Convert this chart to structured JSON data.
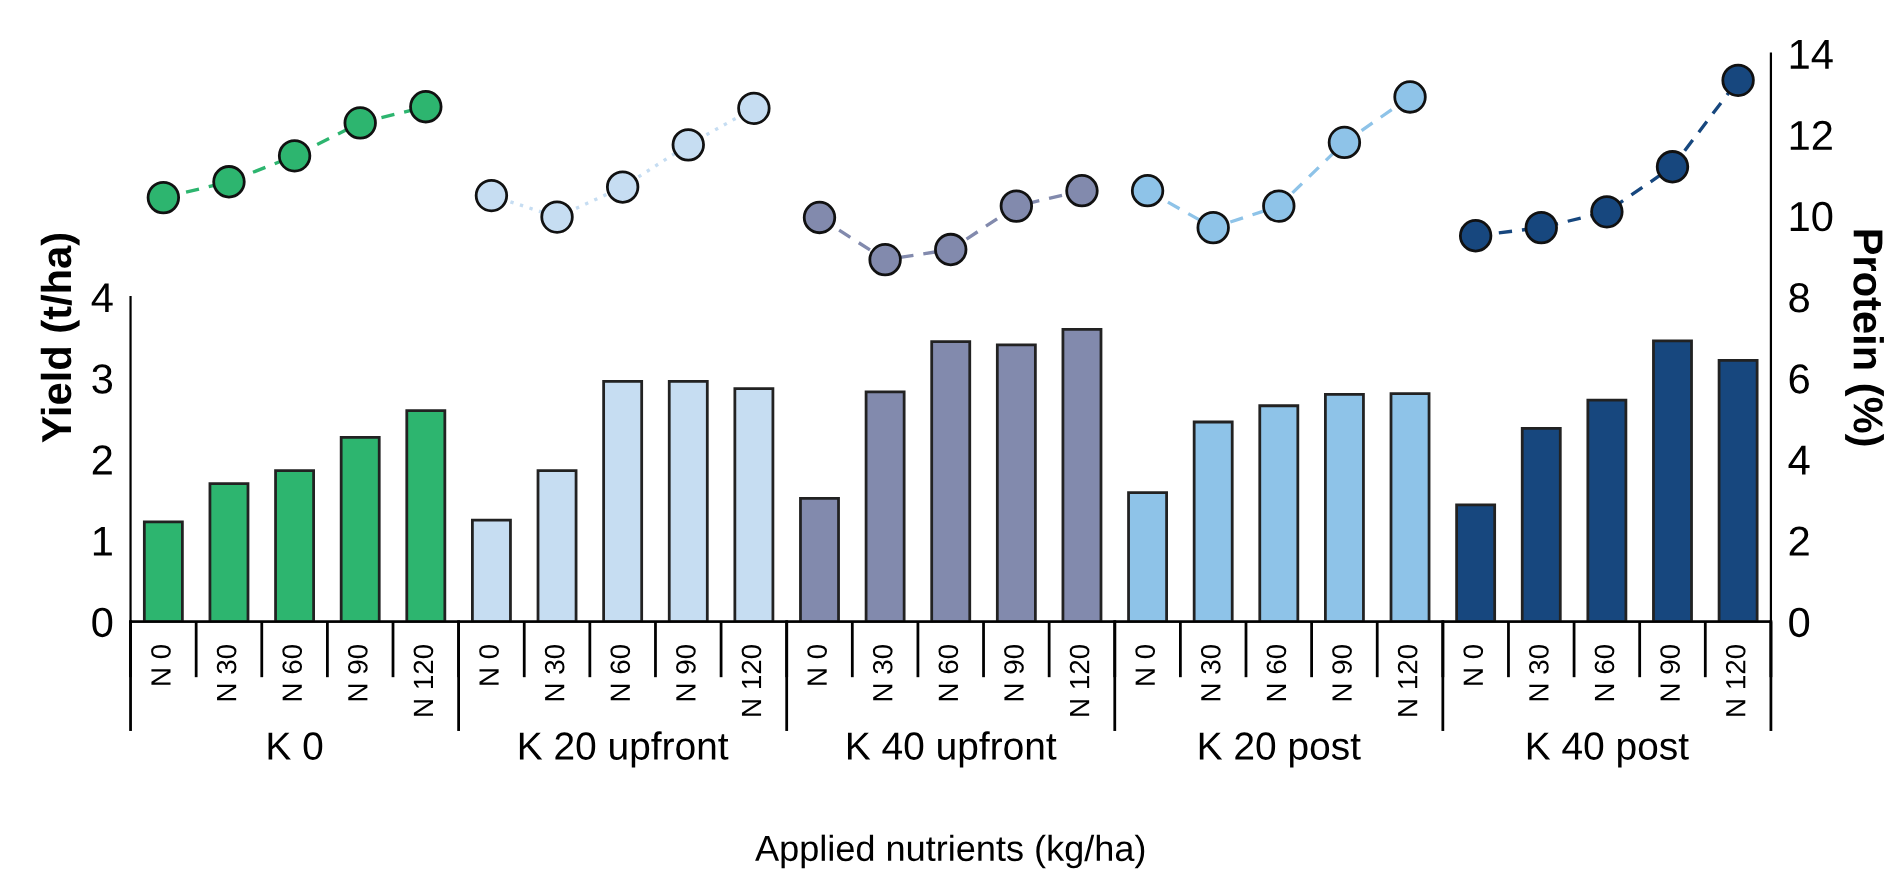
{
  "chart_data": {
    "type": "bar",
    "categories": [
      "N 0",
      "N 30",
      "N 60",
      "N 90",
      "N 120",
      "N 0",
      "N 30",
      "N 60",
      "N 90",
      "N 120",
      "N 0",
      "N 30",
      "N 60",
      "N 90",
      "N 120",
      "N 0",
      "N 30",
      "N 60",
      "N 90",
      "N 120",
      "N 0",
      "N 30",
      "N 60",
      "N 90",
      "N 120"
    ],
    "values": [
      1.23,
      1.7,
      1.86,
      2.27,
      2.6,
      1.25,
      1.86,
      2.96,
      2.96,
      2.87,
      1.52,
      2.83,
      3.45,
      3.41,
      3.6,
      1.59,
      2.46,
      2.66,
      2.8,
      2.81,
      1.44,
      2.38,
      2.73,
      3.46,
      3.22
    ],
    "colors": [
      "#2db56f",
      "#2db56f",
      "#2db56f",
      "#2db56f",
      "#2db56f",
      "#c6ddf2",
      "#c6ddf2",
      "#c6ddf2",
      "#c6ddf2",
      "#c6ddf2",
      "#828aad",
      "#828aad",
      "#828aad",
      "#828aad",
      "#828aad",
      "#8ec3e8",
      "#8ec3e8",
      "#8ec3e8",
      "#8ec3e8",
      "#8ec3e8",
      "#17477e",
      "#17477e",
      "#17477e",
      "#17477e",
      "#17477e"
    ],
    "series": [
      {
        "type": "line",
        "axis": "y2",
        "color": "#2db56f",
        "line_style": "dashed",
        "values": [
          10.45,
          10.84,
          11.48,
          12.29,
          12.69,
          null,
          null,
          null,
          null,
          null,
          null,
          null,
          null,
          null,
          null,
          null,
          null,
          null,
          null,
          null,
          null,
          null,
          null,
          null,
          null
        ]
      },
      {
        "type": "line",
        "axis": "y2",
        "color": "#c6ddf2",
        "line_style": "dotted",
        "values": [
          null,
          null,
          null,
          null,
          null,
          10.5,
          9.97,
          10.71,
          11.75,
          12.65,
          null,
          null,
          null,
          null,
          null,
          null,
          null,
          null,
          null,
          null,
          null,
          null,
          null,
          null,
          null
        ]
      },
      {
        "type": "line",
        "axis": "y2",
        "color": "#828aad",
        "line_style": "dashed",
        "values": [
          null,
          null,
          null,
          null,
          null,
          null,
          null,
          null,
          null,
          null,
          9.96,
          8.92,
          9.17,
          10.24,
          10.62,
          null,
          null,
          null,
          null,
          null,
          null,
          null,
          null,
          null,
          null
        ]
      },
      {
        "type": "line",
        "axis": "y2",
        "color": "#8ec3e8",
        "line_style": "dashed",
        "values": [
          null,
          null,
          null,
          null,
          null,
          null,
          null,
          null,
          null,
          null,
          null,
          null,
          null,
          null,
          null,
          10.62,
          9.71,
          10.24,
          11.81,
          12.93,
          null,
          null,
          null,
          null,
          null
        ]
      },
      {
        "type": "line",
        "axis": "y2",
        "color": "#17477e",
        "line_style": "dashed",
        "values": [
          null,
          null,
          null,
          null,
          null,
          null,
          null,
          null,
          null,
          null,
          null,
          null,
          null,
          null,
          null,
          null,
          null,
          null,
          null,
          null,
          9.51,
          9.71,
          10.1,
          11.21,
          13.34
        ]
      }
    ],
    "marker": "circle",
    "ylabel": "Yield (t/ha)",
    "y2label": "Protein (%)",
    "xlabel": "Applied nutrients (kg/ha)",
    "ylim": [
      0,
      7
    ],
    "yticks": [
      0,
      1,
      2,
      3,
      4
    ],
    "y2lim": [
      0,
      14
    ],
    "y2ticks": [
      0,
      2,
      4,
      6,
      8,
      10,
      12,
      14
    ],
    "annotations": [
      "K 0",
      "K 20 upfront",
      "K 40 upfront",
      "K 20 post",
      "K 40 post"
    ],
    "grid": false,
    "legend": false
  }
}
